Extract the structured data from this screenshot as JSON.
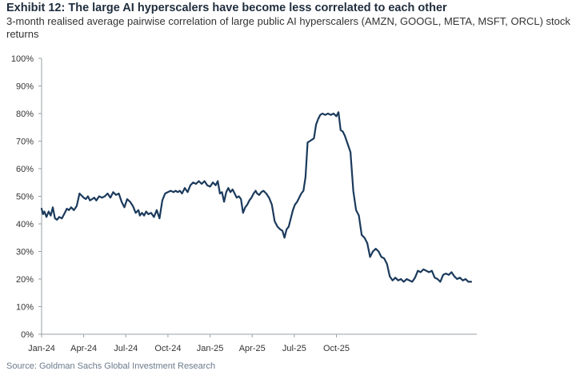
{
  "chart_data": {
    "type": "line",
    "title": "Exhibit 12: The large AI hyperscalers have become less correlated to each other",
    "subtitle": "3-month realised average pairwise correlation of large public AI hyperscalers (AMZN, GOOGL, META, MSFT, ORCL) stock returns",
    "source": "Source: Goldman Sachs Global Investment Research",
    "xlabel": "",
    "ylabel": "",
    "x_ticks": [
      "Jan-24",
      "Apr-24",
      "Jul-24",
      "Oct-24",
      "Jan-25",
      "Apr-25",
      "Jul-25",
      "Oct-25"
    ],
    "y_ticks": [
      "0%",
      "10%",
      "20%",
      "30%",
      "40%",
      "50%",
      "60%",
      "70%",
      "80%",
      "90%",
      "100%"
    ],
    "ylim": [
      0,
      100
    ],
    "line_color": "#1b3a5c",
    "grid": false,
    "series": [
      {
        "name": "",
        "x_months": [
          0.0,
          0.1,
          0.2,
          0.35,
          0.5,
          0.65,
          0.8,
          0.95,
          1.1,
          1.25,
          1.45,
          1.65,
          1.8,
          1.95,
          2.1,
          2.3,
          2.5,
          2.7,
          2.9,
          3.0,
          3.15,
          3.3,
          3.45,
          3.6,
          3.75,
          3.9,
          4.1,
          4.3,
          4.5,
          4.7,
          4.9,
          5.1,
          5.3,
          5.5,
          5.7,
          5.9,
          6.1,
          6.3,
          6.5,
          6.7,
          6.9,
          7.0,
          7.15,
          7.3,
          7.45,
          7.6,
          7.8,
          8.0,
          8.2,
          8.4,
          8.6,
          8.8,
          9.0,
          9.2,
          9.4,
          9.55,
          9.7,
          9.85,
          10.0,
          10.2,
          10.4,
          10.6,
          10.8,
          11.0,
          11.2,
          11.4,
          11.6,
          11.8,
          12.0,
          12.2,
          12.4,
          12.55,
          12.7,
          12.85,
          13.0,
          13.15,
          13.3,
          13.45,
          13.6,
          13.75,
          13.9,
          14.05,
          14.2,
          14.35,
          14.5,
          14.65,
          14.8,
          14.95,
          15.1,
          15.25,
          15.35,
          15.5,
          15.65,
          15.8,
          16.0,
          16.2,
          16.4,
          16.6,
          16.8,
          17.0,
          17.15,
          17.3,
          17.45,
          17.6,
          17.75,
          17.9,
          18.05,
          18.2,
          18.35,
          18.5,
          18.65,
          18.8,
          18.95,
          19.1,
          19.25,
          19.4,
          19.55,
          19.7,
          19.85,
          20.0,
          20.2,
          20.4,
          20.6,
          20.8,
          21.0,
          21.15,
          21.3,
          21.45,
          21.6,
          21.8,
          22.0,
          22.2,
          22.4,
          22.6,
          22.8,
          23.0,
          23.2,
          23.4,
          23.6
        ],
        "values": [
          45.5,
          43.5,
          44.5,
          42.5,
          44.5,
          43.0,
          46.0,
          42.0,
          41.5,
          42.5,
          42.0,
          44.0,
          45.5,
          45.0,
          46.0,
          45.0,
          46.5,
          51.0,
          50.0,
          49.5,
          49.0,
          50.0,
          48.5,
          49.0,
          49.5,
          48.5,
          50.0,
          49.5,
          50.0,
          51.0,
          49.5,
          51.5,
          50.5,
          51.0,
          48.0,
          46.0,
          49.0,
          48.0,
          46.5,
          44.0,
          45.0,
          43.0,
          44.0,
          43.0,
          44.5,
          43.5,
          44.0,
          42.5,
          45.0,
          42.0,
          48.5,
          51.0,
          51.5,
          52.0,
          51.5,
          52.0,
          51.5,
          52.0,
          51.0,
          53.0,
          51.5,
          54.0,
          55.0,
          54.5,
          55.5,
          54.5,
          55.5,
          54.0,
          53.5,
          55.0,
          54.0,
          55.5,
          51.0,
          51.5,
          48.0,
          51.5,
          53.0,
          51.5,
          52.5,
          51.0,
          49.5,
          50.0,
          49.0,
          44.0,
          46.0,
          47.0,
          48.5,
          49.5,
          51.0,
          52.0,
          51.0,
          50.5,
          51.5,
          52.0,
          51.0,
          49.5,
          47.0,
          41.0,
          39.0,
          38.0,
          37.5,
          35.0,
          38.0,
          39.0,
          42.0,
          45.0,
          47.0,
          48.0,
          49.5,
          51.0,
          52.0,
          57.0,
          69.5,
          70.0,
          70.5,
          71.0,
          76.0,
          78.0,
          79.5,
          80.0,
          79.5,
          80.0,
          79.5,
          80.0,
          79.0,
          80.5,
          74.0,
          73.5,
          72.0,
          69.0,
          66.0,
          52.0,
          45.0,
          43.0,
          36.0,
          35.0,
          33.0,
          28.0,
          30.0
        ]
      },
      {
        "name": "",
        "x_months": [
          23.6,
          23.8,
          24.0,
          24.2,
          24.4,
          24.6,
          24.8,
          25.0,
          25.2,
          25.4,
          25.6,
          25.8,
          26.0,
          26.2,
          26.4,
          26.6,
          26.8,
          27.0,
          27.2,
          27.4,
          27.6,
          27.8,
          28.0,
          28.2,
          28.4,
          28.6,
          28.8,
          29.0,
          29.2,
          29.4,
          29.6,
          29.8,
          30.0,
          30.2,
          30.4,
          30.6
        ],
        "values": [
          30.0,
          31.0,
          30.0,
          28.0,
          27.5,
          25.5,
          21.0,
          19.5,
          20.5,
          19.5,
          20.0,
          19.0,
          20.0,
          19.5,
          19.0,
          20.5,
          23.0,
          22.5,
          23.5,
          23.0,
          22.5,
          23.0,
          20.5,
          20.0,
          19.0,
          21.5,
          22.0,
          21.5,
          22.5,
          21.0,
          20.0,
          20.5,
          19.5,
          20.0,
          19.0,
          19.0
        ]
      }
    ]
  }
}
